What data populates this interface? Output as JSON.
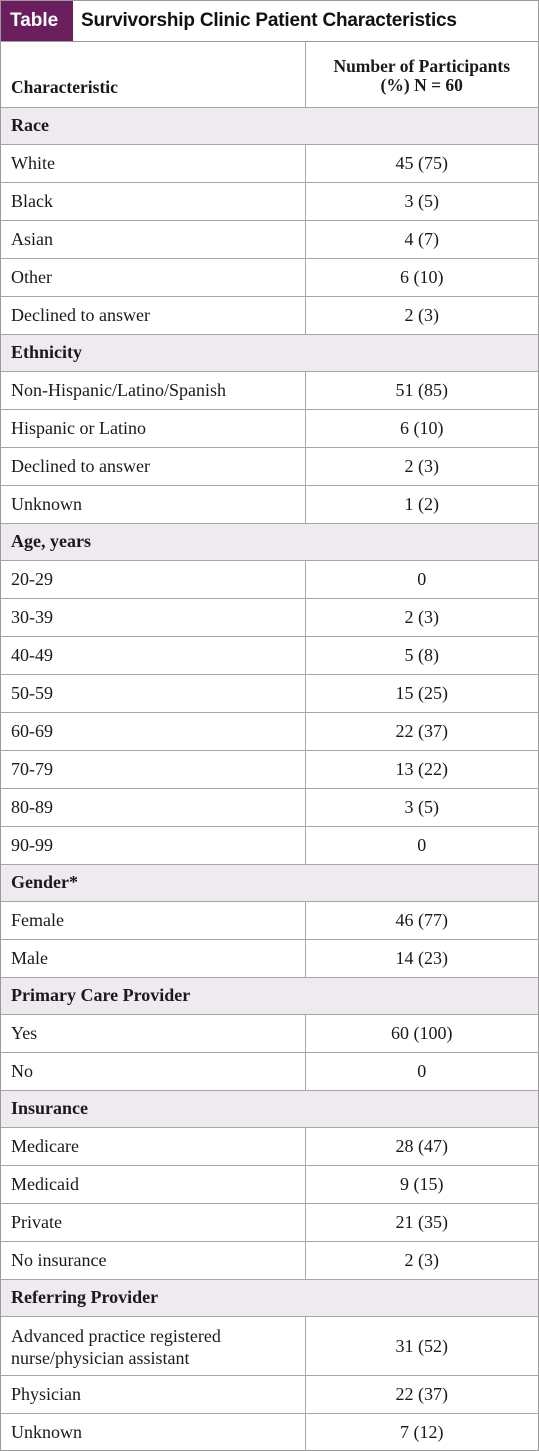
{
  "title": {
    "tag": "Table",
    "text": "Survivorship Clinic Patient Characteristics"
  },
  "columns": {
    "characteristic": "Characteristic",
    "participants_line1": "Number of Participants",
    "participants_line2": "(%) N = 60"
  },
  "sections": [
    {
      "label": "Race",
      "rows": [
        {
          "label": "White",
          "value": "45 (75)"
        },
        {
          "label": "Black",
          "value": "3 (5)"
        },
        {
          "label": "Asian",
          "value": "4 (7)"
        },
        {
          "label": "Other",
          "value": "6 (10)"
        },
        {
          "label": "Declined to answer",
          "value": "2 (3)"
        }
      ]
    },
    {
      "label": "Ethnicity",
      "rows": [
        {
          "label": "Non-Hispanic/Latino/Spanish",
          "value": "51 (85)"
        },
        {
          "label": "Hispanic or Latino",
          "value": "6 (10)"
        },
        {
          "label": "Declined to answer",
          "value": "2 (3)"
        },
        {
          "label": "Unknown",
          "value": "1 (2)"
        }
      ]
    },
    {
      "label": "Age, years",
      "rows": [
        {
          "label": "20-29",
          "value": "0"
        },
        {
          "label": "30-39",
          "value": "2 (3)"
        },
        {
          "label": "40-49",
          "value": "5 (8)"
        },
        {
          "label": "50-59",
          "value": "15 (25)"
        },
        {
          "label": "60-69",
          "value": "22 (37)"
        },
        {
          "label": "70-79",
          "value": "13 (22)"
        },
        {
          "label": "80-89",
          "value": "3 (5)"
        },
        {
          "label": "90-99",
          "value": "0"
        }
      ]
    },
    {
      "label": "Gender*",
      "rows": [
        {
          "label": "Female",
          "value": "46 (77)"
        },
        {
          "label": "Male",
          "value": "14 (23)"
        }
      ]
    },
    {
      "label": "Primary Care Provider",
      "rows": [
        {
          "label": "Yes",
          "value": "60 (100)"
        },
        {
          "label": "No",
          "value": "0"
        }
      ]
    },
    {
      "label": "Insurance",
      "rows": [
        {
          "label": "Medicare",
          "value": "28 (47)"
        },
        {
          "label": "Medicaid",
          "value": "9 (15)"
        },
        {
          "label": "Private",
          "value": "21 (35)"
        },
        {
          "label": "No insurance",
          "value": "2 (3)"
        }
      ]
    },
    {
      "label": "Referring Provider",
      "rows": [
        {
          "label": "Advanced practice registered nurse/physician assistant",
          "value": "31 (52)",
          "tall": true
        },
        {
          "label": "Physician",
          "value": "22 (37)"
        },
        {
          "label": "Unknown",
          "value": "7 (12)"
        }
      ]
    }
  ],
  "colors": {
    "tag_background": "#6b1e5e",
    "section_background": "#efe9f0",
    "border": "#a6a6a6"
  }
}
